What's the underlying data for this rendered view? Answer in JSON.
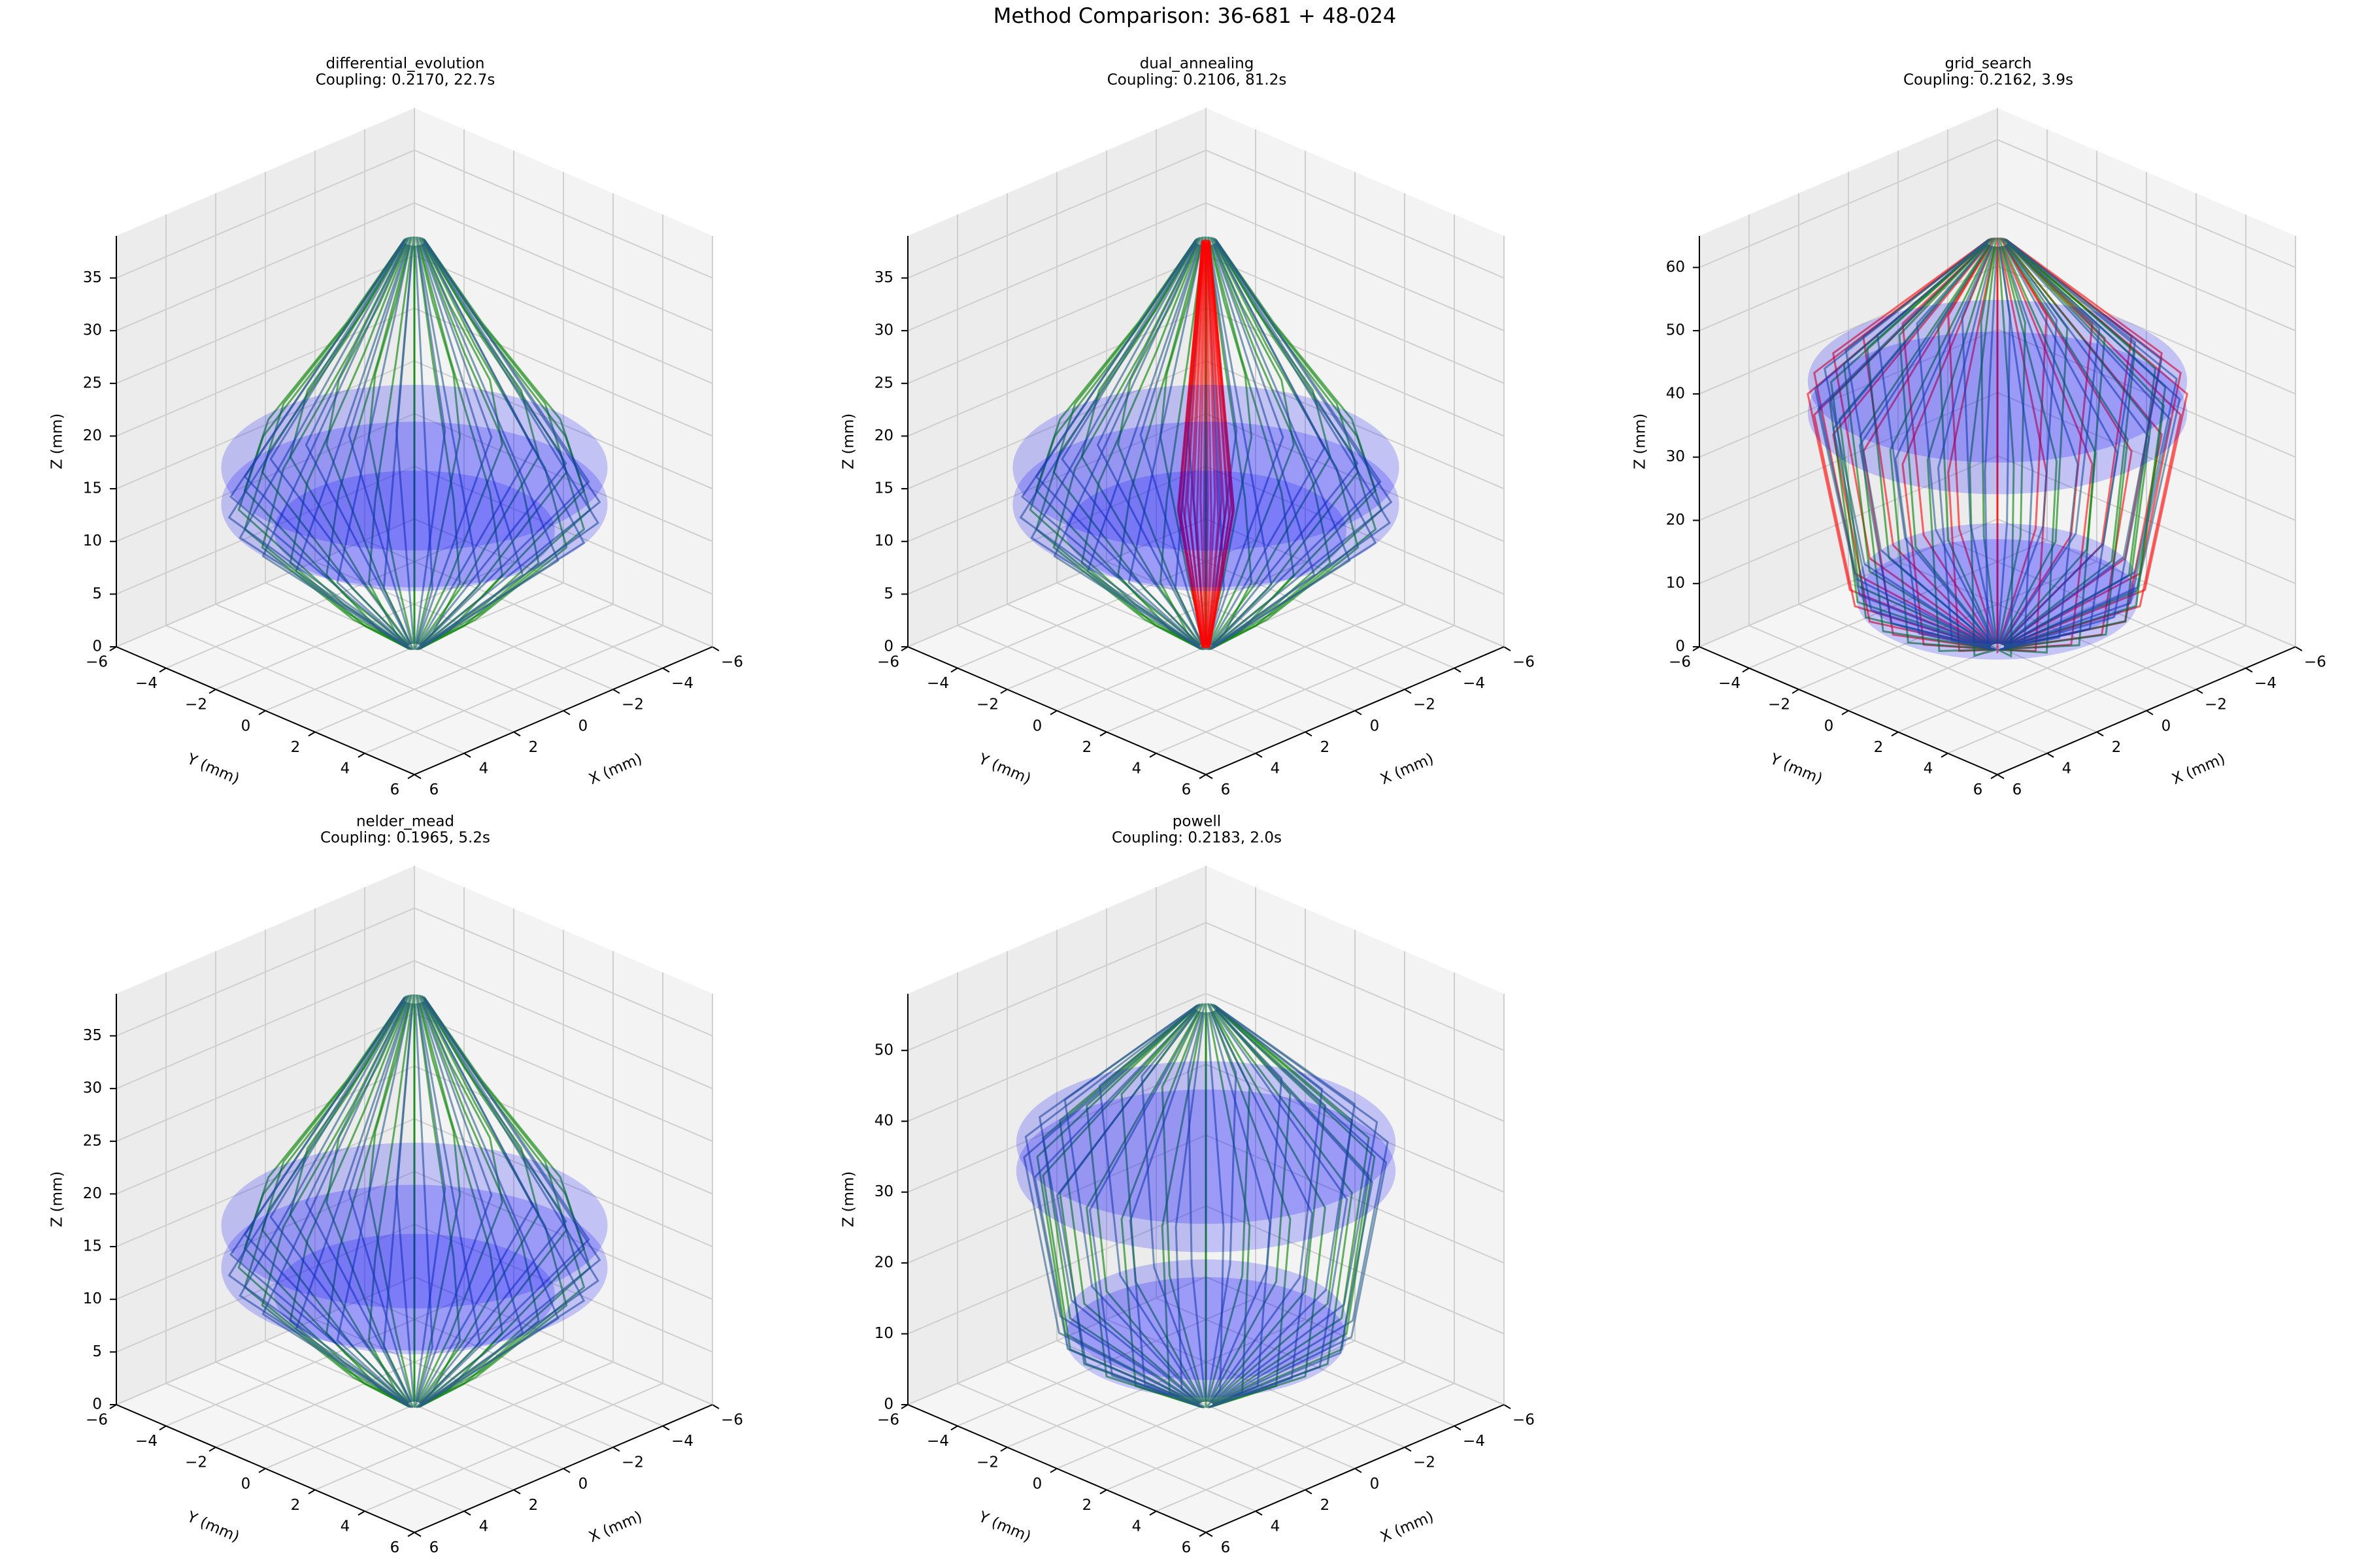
{
  "title": "Method Comparison: 36-681 + 48-024",
  "chart_data": [
    {
      "type": "wire3d",
      "title": "differential_evolution",
      "subtitle": "Coupling: 0.2170, 22.7s",
      "xlabel": "X (mm)",
      "ylabel": "Y (mm)",
      "zlabel": "Z (mm)",
      "xlim": [
        -6,
        6
      ],
      "ylim": [
        -6,
        6
      ],
      "zlim": [
        0,
        39
      ],
      "xticks": [
        {
          "value": -6,
          "label": "−6"
        },
        {
          "value": -4,
          "label": "−4"
        },
        {
          "value": -2,
          "label": "−2"
        },
        0,
        2,
        4,
        6
      ],
      "yticks": [
        {
          "value": -6,
          "label": "−6"
        },
        {
          "value": -4,
          "label": "−4"
        },
        {
          "value": -2,
          "label": "−2"
        },
        0,
        2,
        4,
        6
      ],
      "zticks": [
        0,
        5,
        10,
        15,
        20,
        25,
        30,
        35
      ],
      "coil_color": "#0000ff",
      "coils": [
        {
          "z": 17,
          "r": 5.5
        },
        {
          "z": 13.5,
          "r": 5.5
        },
        {
          "z": 11,
          "r": 4
        }
      ],
      "wires": [
        {
          "color": "#008000",
          "z": [
            0,
            4,
            13,
            20,
            30,
            38.5
          ],
          "r": [
            0.2,
            2,
            5,
            4.3,
            2,
            0.3
          ]
        },
        {
          "color": "#2a5d8a",
          "z": [
            0,
            13,
            38.5
          ],
          "r": [
            0.2,
            5.3,
            0.3
          ]
        }
      ]
    },
    {
      "type": "wire3d",
      "title": "dual_annealing",
      "subtitle": "Coupling: 0.2106, 81.2s",
      "xlabel": "X (mm)",
      "ylabel": "Y (mm)",
      "zlabel": "Z (mm)",
      "xlim": [
        -6,
        6
      ],
      "ylim": [
        -6,
        6
      ],
      "zlim": [
        0,
        39
      ],
      "xticks": [
        {
          "value": -6,
          "label": "−6"
        },
        {
          "value": -4,
          "label": "−4"
        },
        {
          "value": -2,
          "label": "−2"
        },
        0,
        2,
        4,
        6
      ],
      "yticks": [
        {
          "value": -6,
          "label": "−6"
        },
        {
          "value": -4,
          "label": "−4"
        },
        {
          "value": -2,
          "label": "−2"
        },
        0,
        2,
        4,
        6
      ],
      "zticks": [
        0,
        5,
        10,
        15,
        20,
        25,
        30,
        35
      ],
      "coil_color": "#0000ff",
      "coils": [
        {
          "z": 17,
          "r": 5.5
        },
        {
          "z": 13.5,
          "r": 5.5
        },
        {
          "z": 11,
          "r": 4
        }
      ],
      "wires": [
        {
          "color": "#008000",
          "z": [
            0,
            4,
            13,
            20,
            30,
            38.5
          ],
          "r": [
            0.2,
            2,
            5,
            4.3,
            2,
            0.3
          ]
        },
        {
          "color": "#2a5d8a",
          "z": [
            0,
            13,
            38.5
          ],
          "r": [
            0.2,
            5.3,
            0.3
          ]
        },
        {
          "color": "#ff0000",
          "z": [
            0,
            13,
            38.5
          ],
          "r": [
            0.1,
            0.8,
            0.1
          ]
        }
      ]
    },
    {
      "type": "wire3d",
      "title": "grid_search",
      "subtitle": "Coupling: 0.2162, 3.9s",
      "xlabel": "X (mm)",
      "ylabel": "Y (mm)",
      "zlabel": "Z (mm)",
      "xlim": [
        -6,
        6
      ],
      "ylim": [
        -6,
        6
      ],
      "zlim": [
        0,
        65
      ],
      "xticks": [
        {
          "value": -6,
          "label": "−6"
        },
        {
          "value": -4,
          "label": "−4"
        },
        {
          "value": -2,
          "label": "−2"
        },
        0,
        2,
        4,
        6
      ],
      "yticks": [
        {
          "value": -6,
          "label": "−6"
        },
        {
          "value": -4,
          "label": "−4"
        },
        {
          "value": -2,
          "label": "−2"
        },
        0,
        2,
        4,
        6
      ],
      "zticks": [
        0,
        10,
        20,
        30,
        40,
        50,
        60
      ],
      "coil_color": "#0000ff",
      "coils": [
        {
          "z": 42,
          "r": 5.4
        },
        {
          "z": 37,
          "r": 5.4
        },
        {
          "z": 10,
          "r": 4
        },
        {
          "z": 7.5,
          "r": 4
        }
      ],
      "wires": [
        {
          "color": "#ff0000",
          "z": [
            0,
            9,
            40,
            64
          ],
          "r": [
            0.2,
            4.2,
            5.4,
            0.3
          ]
        },
        {
          "color": "#008000",
          "z": [
            0,
            8,
            40,
            64
          ],
          "r": [
            0.2,
            4,
            4.8,
            0.3
          ]
        },
        {
          "color": "#2a5d8a",
          "z": [
            0,
            10,
            40,
            64
          ],
          "r": [
            0.2,
            4,
            5.2,
            0.3
          ]
        }
      ]
    },
    {
      "type": "wire3d",
      "title": "nelder_mead",
      "subtitle": "Coupling: 0.1965, 5.2s",
      "xlabel": "X (mm)",
      "ylabel": "Y (mm)",
      "zlabel": "Z (mm)",
      "xlim": [
        -6,
        6
      ],
      "ylim": [
        -6,
        6
      ],
      "zlim": [
        0,
        39
      ],
      "xticks": [
        {
          "value": -6,
          "label": "−6"
        },
        {
          "value": -4,
          "label": "−4"
        },
        {
          "value": -2,
          "label": "−2"
        },
        0,
        2,
        4,
        6
      ],
      "yticks": [
        {
          "value": -6,
          "label": "−6"
        },
        {
          "value": -4,
          "label": "−4"
        },
        {
          "value": -2,
          "label": "−2"
        },
        0,
        2,
        4,
        6
      ],
      "zticks": [
        0,
        5,
        10,
        15,
        20,
        25,
        30,
        35
      ],
      "coil_color": "#0000ff",
      "coils": [
        {
          "z": 17,
          "r": 5.5
        },
        {
          "z": 13,
          "r": 5.5
        },
        {
          "z": 10.5,
          "r": 4
        }
      ],
      "wires": [
        {
          "color": "#008000",
          "z": [
            0,
            4,
            13,
            20,
            30,
            38.5
          ],
          "r": [
            0.2,
            2,
            5,
            4.3,
            2,
            0.3
          ]
        },
        {
          "color": "#2a5d8a",
          "z": [
            0,
            13,
            38.5
          ],
          "r": [
            0.2,
            5.3,
            0.3
          ]
        }
      ]
    },
    {
      "type": "wire3d",
      "title": "powell",
      "subtitle": "Coupling: 0.2183, 2.0s",
      "xlabel": "X (mm)",
      "ylabel": "Y (mm)",
      "zlabel": "Z (mm)",
      "xlim": [
        -6,
        6
      ],
      "ylim": [
        -6,
        6
      ],
      "zlim": [
        0,
        58
      ],
      "xticks": [
        {
          "value": -6,
          "label": "−6"
        },
        {
          "value": -4,
          "label": "−4"
        },
        {
          "value": -2,
          "label": "−2"
        },
        0,
        2,
        4,
        6
      ],
      "yticks": [
        {
          "value": -6,
          "label": "−6"
        },
        {
          "value": -4,
          "label": "−4"
        },
        {
          "value": -2,
          "label": "−2"
        },
        0,
        2,
        4,
        6
      ],
      "zticks": [
        0,
        10,
        20,
        30,
        40,
        50
      ],
      "coil_color": "#0000ff",
      "coils": [
        {
          "z": 37,
          "r": 5.4
        },
        {
          "z": 33,
          "r": 5.4
        },
        {
          "z": 12,
          "r": 4
        },
        {
          "z": 9.5,
          "r": 4
        }
      ],
      "wires": [
        {
          "color": "#008000",
          "z": [
            0,
            10,
            35,
            56
          ],
          "r": [
            0.2,
            4,
            4.8,
            0.3
          ]
        },
        {
          "color": "#2a5d8a",
          "z": [
            0,
            11,
            36,
            56
          ],
          "r": [
            0.2,
            4.2,
            5.2,
            0.3
          ]
        }
      ]
    }
  ]
}
